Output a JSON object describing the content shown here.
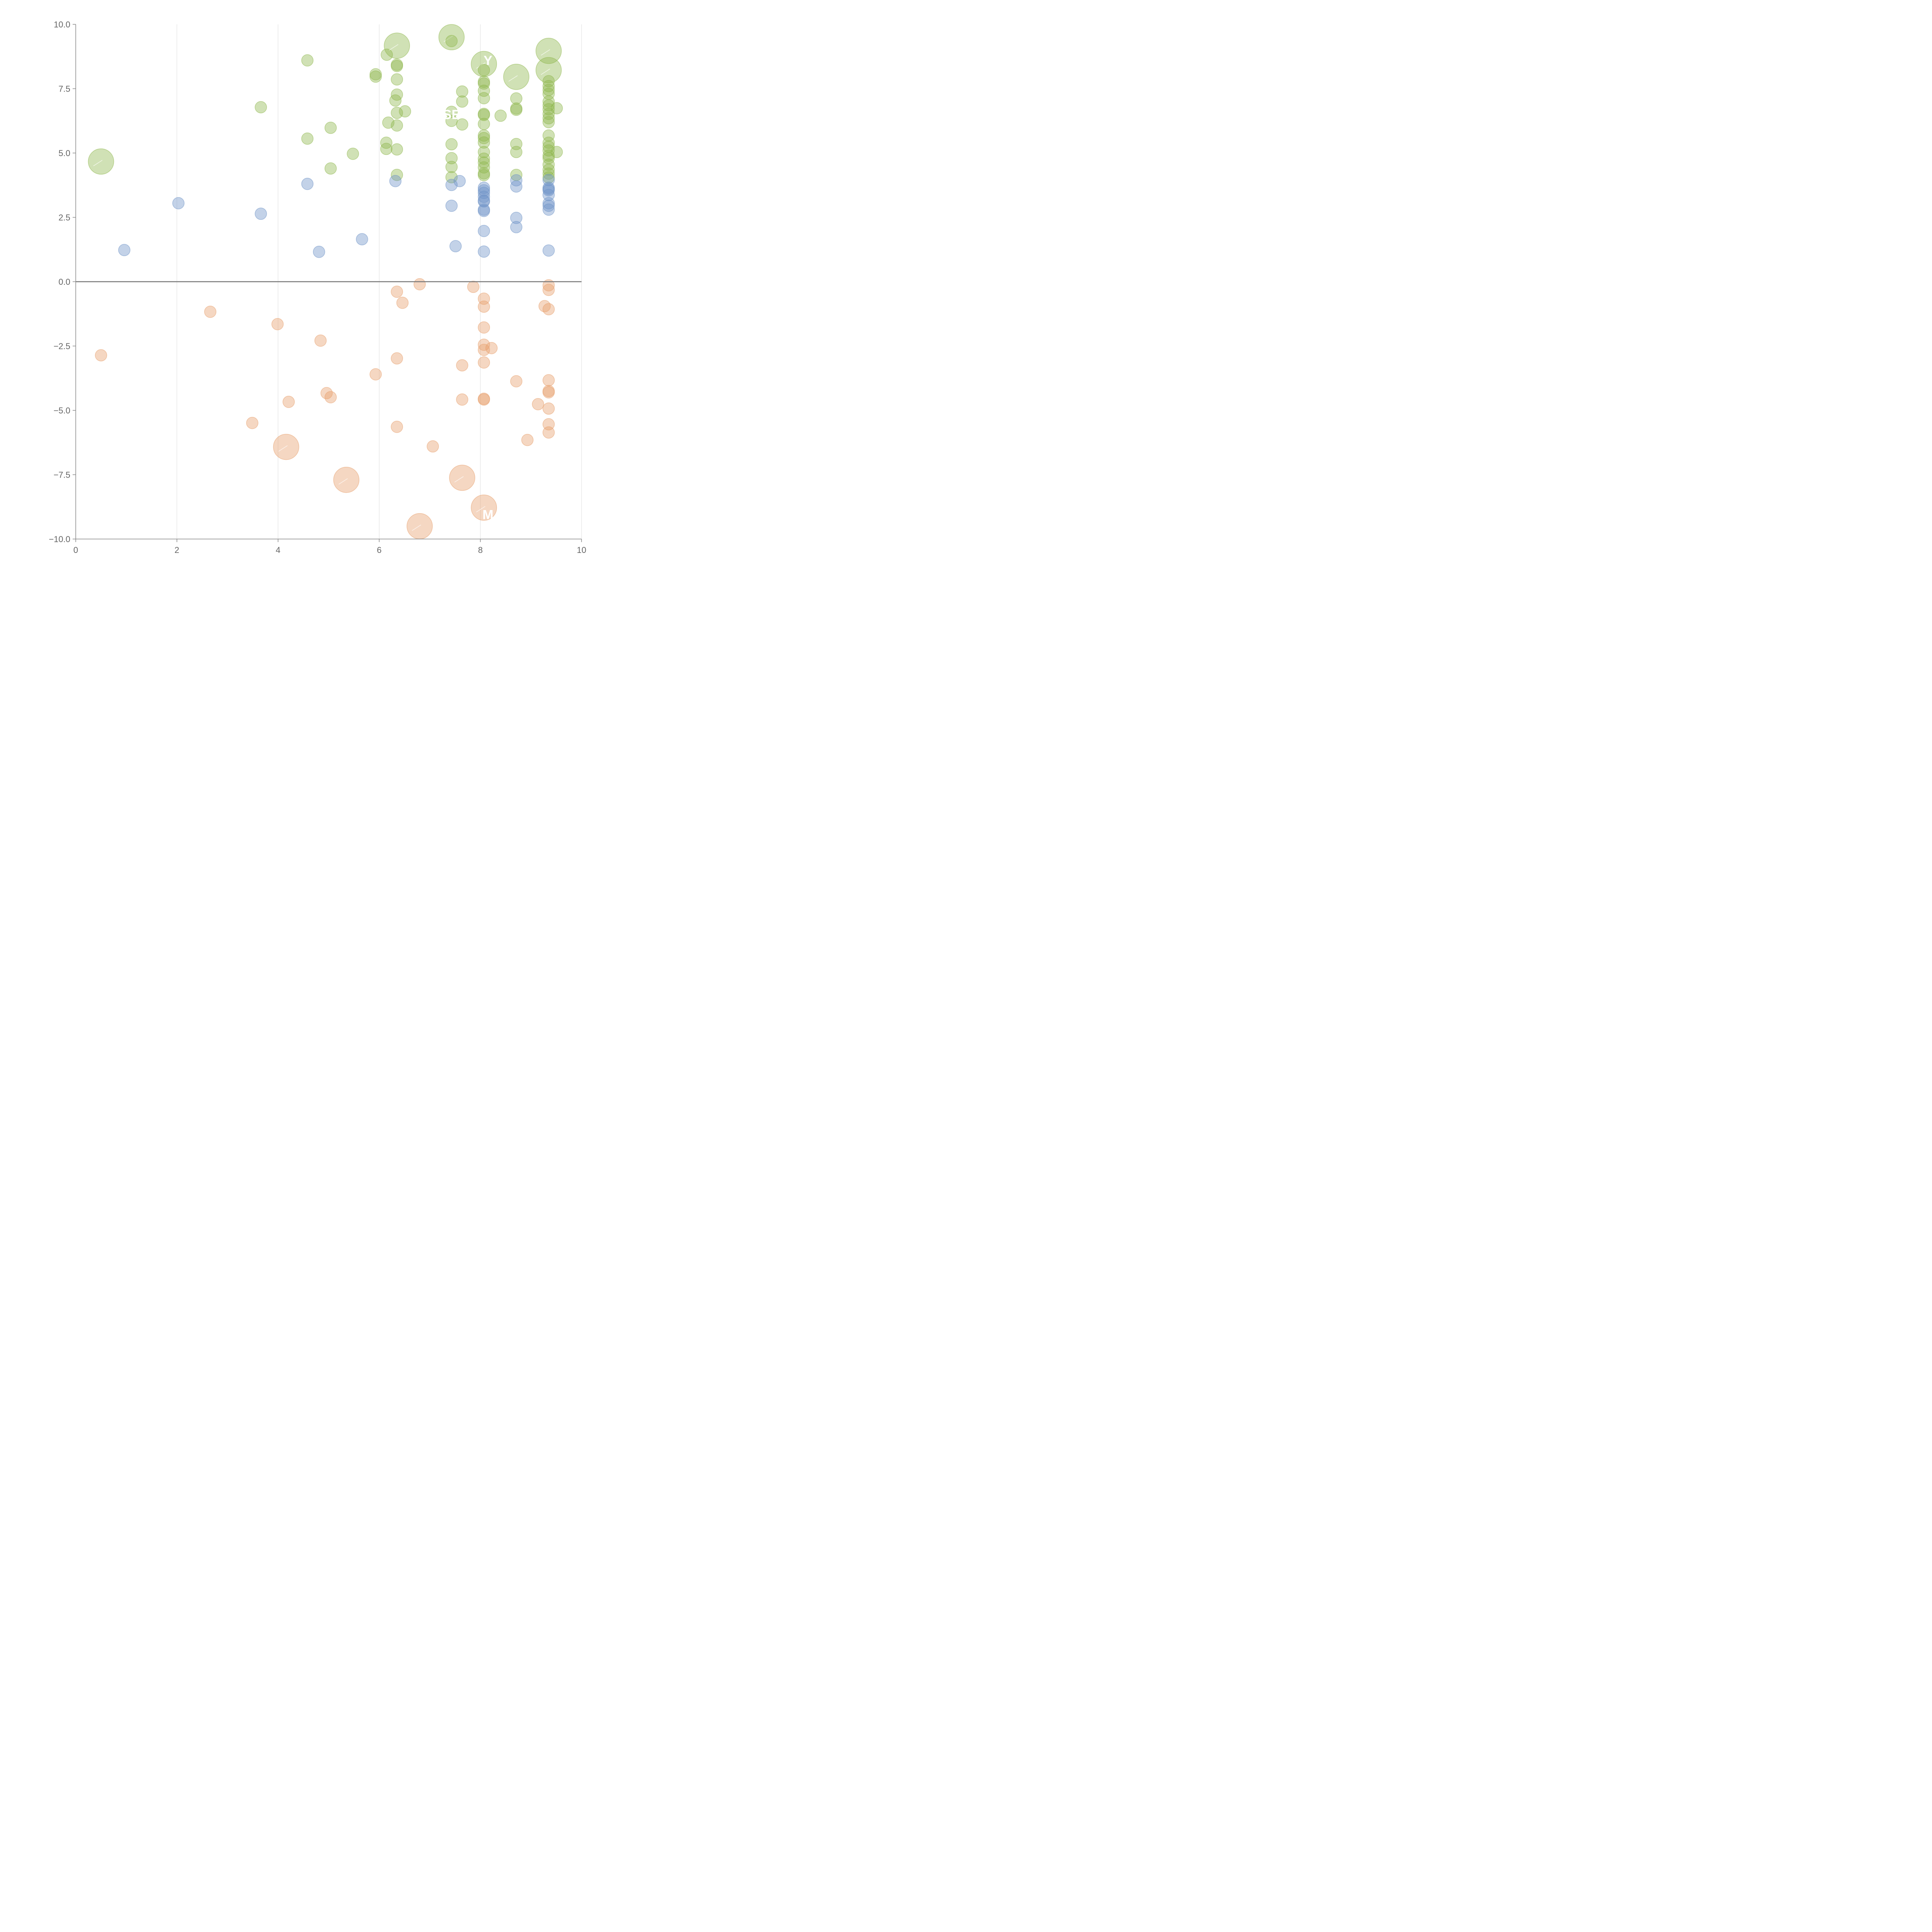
{
  "chart_data": {
    "type": "scatter",
    "title": "",
    "xlabel": "",
    "ylabel": "",
    "xlim": [
      0,
      10
    ],
    "ylim": [
      -10,
      10
    ],
    "x_ticks": [
      0,
      2,
      4,
      6,
      8,
      10
    ],
    "x_tick_labels": [
      "0",
      "2",
      "4",
      "6",
      "8",
      "10"
    ],
    "y_ticks": [
      -10,
      -7.5,
      -5,
      -2.5,
      0,
      2.5,
      5,
      7.5,
      10
    ],
    "y_tick_labels": [
      "−10.0",
      "−7.5",
      "−5.0",
      "−2.5",
      "0.0",
      "2.5",
      "5.0",
      "7.5",
      "10.0"
    ],
    "vertical_grid": true,
    "zero_line": true,
    "legend": "none",
    "series": [
      {
        "color": "#8fb84e",
        "points": [
          [
            0.5,
            4.67,
            2.2
          ],
          [
            3.66,
            6.78,
            1
          ],
          [
            4.58,
            8.6,
            1
          ],
          [
            4.58,
            5.56,
            1
          ],
          [
            5.04,
            5.98,
            1
          ],
          [
            5.04,
            4.4,
            1
          ],
          [
            5.48,
            4.97,
            1
          ],
          [
            5.93,
            8.06,
            1
          ],
          [
            5.93,
            7.97,
            1
          ],
          [
            6.15,
            8.82,
            1
          ],
          [
            6.18,
            6.18,
            1
          ],
          [
            6.14,
            5.4,
            1
          ],
          [
            6.14,
            5.16,
            1
          ],
          [
            6.35,
            9.17,
            2.2
          ],
          [
            6.35,
            8.43,
            1
          ],
          [
            6.35,
            8.38,
            1
          ],
          [
            6.35,
            7.86,
            1
          ],
          [
            6.35,
            7.27,
            1
          ],
          [
            6.32,
            7.04,
            1
          ],
          [
            6.35,
            6.56,
            1
          ],
          [
            6.51,
            6.62,
            1
          ],
          [
            6.35,
            6.07,
            1
          ],
          [
            6.35,
            5.14,
            1
          ],
          [
            6.35,
            4.15,
            1
          ],
          [
            7.43,
            9.5,
            2.2
          ],
          [
            7.43,
            9.35,
            1
          ],
          [
            7.43,
            6.6,
            1
          ],
          [
            7.43,
            6.25,
            1
          ],
          [
            7.43,
            5.34,
            1
          ],
          [
            7.43,
            4.8,
            1
          ],
          [
            7.43,
            4.46,
            1
          ],
          [
            7.43,
            4.06,
            1
          ],
          [
            7.64,
            7.39,
            1
          ],
          [
            7.64,
            7.0,
            1
          ],
          [
            7.64,
            6.11,
            1
          ],
          [
            8.07,
            8.46,
            2.2
          ],
          [
            8.07,
            8.22,
            1
          ],
          [
            8.07,
            7.77,
            1
          ],
          [
            8.07,
            7.7,
            1
          ],
          [
            8.07,
            7.42,
            1
          ],
          [
            8.07,
            7.13,
            1
          ],
          [
            8.07,
            6.52,
            1
          ],
          [
            8.07,
            6.48,
            1
          ],
          [
            8.07,
            6.13,
            1
          ],
          [
            8.07,
            5.68,
            1
          ],
          [
            8.07,
            5.58,
            1
          ],
          [
            8.07,
            5.41,
            1
          ],
          [
            8.07,
            5.04,
            1
          ],
          [
            8.07,
            4.78,
            1
          ],
          [
            8.07,
            4.63,
            1
          ],
          [
            8.07,
            4.44,
            1
          ],
          [
            8.07,
            4.21,
            1
          ],
          [
            8.07,
            4.14,
            1
          ],
          [
            8.4,
            6.45,
            1
          ],
          [
            8.71,
            7.96,
            2.2
          ],
          [
            8.71,
            7.12,
            1
          ],
          [
            8.71,
            6.73,
            1
          ],
          [
            8.71,
            6.68,
            1
          ],
          [
            8.71,
            5.35,
            1
          ],
          [
            8.71,
            5.04,
            1
          ],
          [
            8.71,
            4.15,
            1
          ],
          [
            9.35,
            8.97,
            2.2
          ],
          [
            9.35,
            8.22,
            2.2
          ],
          [
            9.35,
            7.79,
            1
          ],
          [
            9.35,
            7.6,
            1
          ],
          [
            9.35,
            7.45,
            1
          ],
          [
            9.35,
            7.3,
            1
          ],
          [
            9.35,
            7.0,
            1
          ],
          [
            9.35,
            6.85,
            1
          ],
          [
            9.35,
            6.7,
            1
          ],
          [
            9.35,
            6.52,
            1
          ],
          [
            9.35,
            6.35,
            1
          ],
          [
            9.35,
            6.2,
            1
          ],
          [
            9.35,
            5.68,
            1
          ],
          [
            9.35,
            5.4,
            1
          ],
          [
            9.35,
            5.25,
            1
          ],
          [
            9.35,
            5.1,
            1
          ],
          [
            9.35,
            4.9,
            1
          ],
          [
            9.35,
            4.8,
            1
          ],
          [
            9.35,
            4.55,
            1
          ],
          [
            9.35,
            4.35,
            1
          ],
          [
            9.35,
            4.2,
            1
          ],
          [
            9.35,
            4.05,
            1
          ],
          [
            9.51,
            6.74,
            1
          ],
          [
            9.51,
            5.04,
            1
          ]
        ]
      },
      {
        "color": "#6f94c7",
        "points": [
          [
            0.96,
            1.23,
            1
          ],
          [
            2.03,
            3.05,
            1
          ],
          [
            3.66,
            2.64,
            1
          ],
          [
            4.58,
            3.8,
            1
          ],
          [
            4.81,
            1.16,
            1
          ],
          [
            5.66,
            1.65,
            1
          ],
          [
            6.32,
            3.91,
            1
          ],
          [
            7.43,
            3.76,
            1
          ],
          [
            7.43,
            2.95,
            1
          ],
          [
            7.51,
            1.38,
            1
          ],
          [
            7.59,
            3.91,
            1
          ],
          [
            8.07,
            3.65,
            1
          ],
          [
            8.07,
            3.55,
            1
          ],
          [
            8.07,
            3.45,
            1
          ],
          [
            8.07,
            3.3,
            1
          ],
          [
            8.07,
            3.15,
            1
          ],
          [
            8.07,
            3.12,
            1
          ],
          [
            8.07,
            2.8,
            1
          ],
          [
            8.07,
            2.75,
            1
          ],
          [
            8.07,
            1.97,
            1
          ],
          [
            8.07,
            1.17,
            1
          ],
          [
            8.71,
            3.94,
            1
          ],
          [
            8.71,
            3.7,
            1
          ],
          [
            8.71,
            2.48,
            1
          ],
          [
            8.71,
            2.12,
            1
          ],
          [
            9.35,
            3.95,
            1
          ],
          [
            9.35,
            3.65,
            1
          ],
          [
            9.35,
            3.6,
            1
          ],
          [
            9.35,
            3.55,
            1
          ],
          [
            9.35,
            3.37,
            1
          ],
          [
            9.35,
            3.05,
            1
          ],
          [
            9.35,
            2.95,
            1
          ],
          [
            9.35,
            2.8,
            1
          ],
          [
            9.35,
            1.21,
            1
          ]
        ]
      },
      {
        "color": "#e8a06d",
        "points": [
          [
            0.5,
            -2.86,
            1
          ],
          [
            2.66,
            -1.17,
            1
          ],
          [
            3.49,
            -5.49,
            1
          ],
          [
            3.99,
            -1.65,
            1
          ],
          [
            4.16,
            -6.42,
            2.2
          ],
          [
            4.21,
            -4.67,
            1
          ],
          [
            4.84,
            -2.29,
            1
          ],
          [
            4.96,
            -4.33,
            1
          ],
          [
            5.04,
            -4.49,
            1
          ],
          [
            5.35,
            -7.7,
            2.2
          ],
          [
            5.93,
            -3.6,
            1
          ],
          [
            6.35,
            -0.39,
            1
          ],
          [
            6.35,
            -2.98,
            1
          ],
          [
            6.35,
            -5.64,
            1
          ],
          [
            6.46,
            -0.82,
            1
          ],
          [
            6.8,
            -0.1,
            1
          ],
          [
            6.8,
            -9.5,
            2.2
          ],
          [
            7.06,
            -6.4,
            1
          ],
          [
            7.64,
            -3.25,
            1
          ],
          [
            7.64,
            -4.58,
            1
          ],
          [
            7.64,
            -7.62,
            2.2
          ],
          [
            7.86,
            -0.2,
            1
          ],
          [
            8.07,
            -0.66,
            1
          ],
          [
            8.07,
            -0.97,
            1
          ],
          [
            8.07,
            -1.78,
            1
          ],
          [
            8.07,
            -2.45,
            1
          ],
          [
            8.07,
            -2.65,
            1
          ],
          [
            8.07,
            -3.14,
            1
          ],
          [
            8.07,
            -4.55,
            1
          ],
          [
            8.07,
            -4.58,
            1
          ],
          [
            8.07,
            -8.78,
            2.2
          ],
          [
            8.22,
            -2.58,
            1
          ],
          [
            8.71,
            -3.87,
            1
          ],
          [
            8.93,
            -6.15,
            1
          ],
          [
            9.14,
            -4.76,
            1
          ],
          [
            9.27,
            -0.95,
            1
          ],
          [
            9.35,
            -0.14,
            1
          ],
          [
            9.35,
            -0.32,
            1
          ],
          [
            9.35,
            -1.07,
            1
          ],
          [
            9.35,
            -3.83,
            1
          ],
          [
            9.35,
            -4.25,
            1
          ],
          [
            9.35,
            -4.3,
            1
          ],
          [
            9.35,
            -4.93,
            1
          ],
          [
            9.35,
            -5.54,
            1
          ],
          [
            9.35,
            -5.86,
            1
          ]
        ]
      }
    ],
    "annotations": [
      {
        "text": "SE",
        "x": 7.43,
        "y": 6.5
      },
      {
        "text": "Y",
        "x": 8.15,
        "y": 8.6
      },
      {
        "text": "M",
        "x": 8.15,
        "y": -9.05
      }
    ]
  }
}
